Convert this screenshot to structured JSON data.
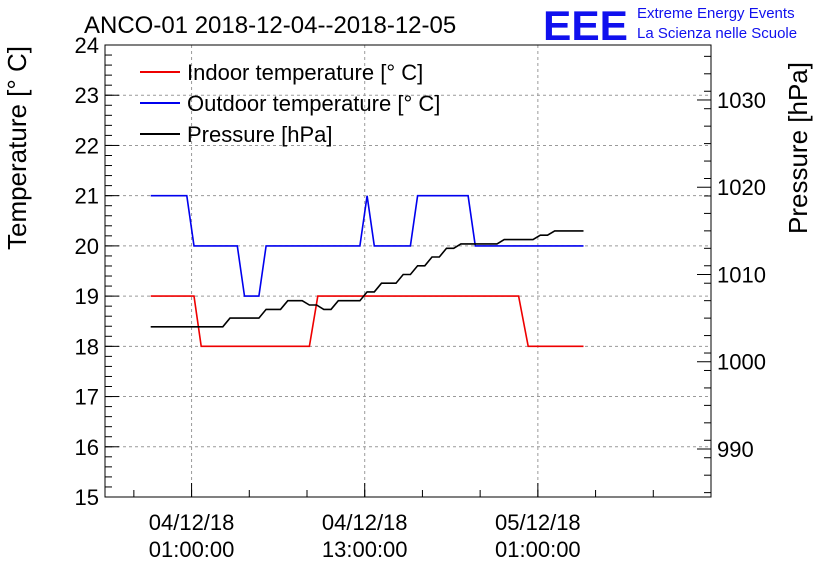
{
  "header": {
    "title": "ANCO-01 2018-12-04--2018-12-05",
    "logo_text": "EEE",
    "logo_line1": "Extreme Energy Events",
    "logo_line2": "La Scienza nelle Scuole",
    "logo_color": "#1010ee"
  },
  "chart_data": {
    "type": "line",
    "title": "ANCO-01 2018-12-04--2018-12-05",
    "ylabel": "Temperature [° C]",
    "y2label": "Pressure [hPa]",
    "ylim": [
      15,
      24
    ],
    "y2lim": [
      984.5,
      1036.3
    ],
    "xlim": [
      "2018-12-03 19:00",
      "2018-12-05 13:00"
    ],
    "yticks": [
      "15",
      "16",
      "17",
      "18",
      "19",
      "20",
      "21",
      "22",
      "23",
      "24"
    ],
    "y2ticks": [
      "990",
      "1000",
      "1010",
      "1020",
      "1030"
    ],
    "xticks": [
      {
        "line1": "04/12/18",
        "line2": "01:00:00",
        "x": "2018-12-04 01:00"
      },
      {
        "line1": "04/12/18",
        "line2": "13:00:00",
        "x": "2018-12-04 13:00"
      },
      {
        "line1": "05/12/18",
        "line2": "01:00:00",
        "x": "2018-12-05 01:00"
      }
    ],
    "grid": true,
    "legend_position": "top-left",
    "series": [
      {
        "name": "Indoor temperature [° C]",
        "axis": "left",
        "color": "#ee0000",
        "points": [
          [
            "2018-12-03 22:10",
            19
          ],
          [
            "2018-12-04 01:10",
            19
          ],
          [
            "2018-12-04 01:40",
            18
          ],
          [
            "2018-12-04 09:10",
            18
          ],
          [
            "2018-12-04 09:45",
            19
          ],
          [
            "2018-12-04 23:40",
            19
          ],
          [
            "2018-12-05 00:20",
            18
          ],
          [
            "2018-12-05 04:10",
            18
          ]
        ]
      },
      {
        "name": "Outdoor temperature [° C]",
        "axis": "left",
        "color": "#0000ee",
        "points": [
          [
            "2018-12-03 22:10",
            21
          ],
          [
            "2018-12-04 00:40",
            21
          ],
          [
            "2018-12-04 01:10",
            20
          ],
          [
            "2018-12-04 04:10",
            20
          ],
          [
            "2018-12-04 04:40",
            19
          ],
          [
            "2018-12-04 05:40",
            19
          ],
          [
            "2018-12-04 06:10",
            20
          ],
          [
            "2018-12-04 12:40",
            20
          ],
          [
            "2018-12-04 13:10",
            21
          ],
          [
            "2018-12-04 13:40",
            20
          ],
          [
            "2018-12-04 16:10",
            20
          ],
          [
            "2018-12-04 16:40",
            21
          ],
          [
            "2018-12-04 20:10",
            21
          ],
          [
            "2018-12-04 20:40",
            20
          ],
          [
            "2018-12-05 04:10",
            20
          ]
        ]
      },
      {
        "name": "Pressure [hPa]",
        "axis": "right",
        "color": "#000000",
        "points": [
          [
            "2018-12-03 22:10",
            1004
          ],
          [
            "2018-12-04 03:10",
            1004
          ],
          [
            "2018-12-04 03:40",
            1005
          ],
          [
            "2018-12-04 05:40",
            1005
          ],
          [
            "2018-12-04 06:10",
            1006
          ],
          [
            "2018-12-04 07:10",
            1006
          ],
          [
            "2018-12-04 07:40",
            1007
          ],
          [
            "2018-12-04 08:40",
            1007
          ],
          [
            "2018-12-04 09:10",
            1006.5
          ],
          [
            "2018-12-04 09:40",
            1006.5
          ],
          [
            "2018-12-04 10:10",
            1006
          ],
          [
            "2018-12-04 10:40",
            1006
          ],
          [
            "2018-12-04 11:10",
            1007
          ],
          [
            "2018-12-04 12:40",
            1007
          ],
          [
            "2018-12-04 13:10",
            1008
          ],
          [
            "2018-12-04 13:40",
            1008
          ],
          [
            "2018-12-04 14:10",
            1009
          ],
          [
            "2018-12-04 15:10",
            1009
          ],
          [
            "2018-12-04 15:40",
            1010
          ],
          [
            "2018-12-04 16:10",
            1010
          ],
          [
            "2018-12-04 16:40",
            1011
          ],
          [
            "2018-12-04 17:10",
            1011
          ],
          [
            "2018-12-04 17:40",
            1012
          ],
          [
            "2018-12-04 18:10",
            1012
          ],
          [
            "2018-12-04 18:40",
            1013
          ],
          [
            "2018-12-04 19:10",
            1013
          ],
          [
            "2018-12-04 19:40",
            1013.5
          ],
          [
            "2018-12-04 22:10",
            1013.5
          ],
          [
            "2018-12-04 22:40",
            1014
          ],
          [
            "2018-12-05 00:40",
            1014
          ],
          [
            "2018-12-05 01:10",
            1014.5
          ],
          [
            "2018-12-05 01:40",
            1014.5
          ],
          [
            "2018-12-05 02:10",
            1015
          ],
          [
            "2018-12-05 04:10",
            1015
          ]
        ]
      }
    ]
  }
}
